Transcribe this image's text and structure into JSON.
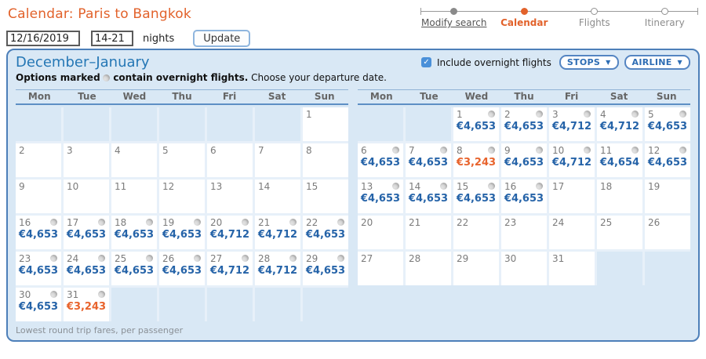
{
  "page": {
    "title": "Calendar: Paris to Bangkok"
  },
  "stepper": {
    "steps": [
      {
        "label": "Modify search",
        "state": "done"
      },
      {
        "label": "Calendar",
        "state": "active"
      },
      {
        "label": "Flights",
        "state": "todo"
      },
      {
        "label": "Itinerary",
        "state": "todo"
      }
    ]
  },
  "controls": {
    "date_value": "12/16/2019",
    "nights_value": "14-21",
    "nights_label": "nights",
    "update_label": "Update"
  },
  "panel": {
    "month_range": "December–January",
    "note_prefix": "Options marked",
    "note_bold_suffix": "contain overnight flights.",
    "note_rest": "Choose your departure date.",
    "include_overnight_label": "Include overnight flights",
    "include_overnight_checked": true,
    "stops_label": "STOPS",
    "airline_label": "AIRLINE",
    "footnote": "Lowest round trip fares, per passenger"
  },
  "icons": {
    "dropdown_arrow": "▼",
    "checkbox_check": "✓"
  },
  "weekdays": [
    "Mon",
    "Tue",
    "Wed",
    "Thu",
    "Fri",
    "Sat",
    "Sun"
  ],
  "calendars": [
    {
      "name": "december",
      "rows": [
        [
          null,
          null,
          null,
          null,
          null,
          null,
          {
            "day": "1"
          }
        ],
        [
          {
            "day": "2"
          },
          {
            "day": "3"
          },
          {
            "day": "4"
          },
          {
            "day": "5"
          },
          {
            "day": "6"
          },
          {
            "day": "7"
          },
          {
            "day": "8"
          }
        ],
        [
          {
            "day": "9"
          },
          {
            "day": "10"
          },
          {
            "day": "11"
          },
          {
            "day": "12"
          },
          {
            "day": "13"
          },
          {
            "day": "14"
          },
          {
            "day": "15"
          }
        ],
        [
          {
            "day": "16",
            "price": "€4,653",
            "overnight": true
          },
          {
            "day": "17",
            "price": "€4,653",
            "overnight": true
          },
          {
            "day": "18",
            "price": "€4,653",
            "overnight": true
          },
          {
            "day": "19",
            "price": "€4,653",
            "overnight": true
          },
          {
            "day": "20",
            "price": "€4,712",
            "overnight": true
          },
          {
            "day": "21",
            "price": "€4,712",
            "overnight": true
          },
          {
            "day": "22",
            "price": "€4,653",
            "overnight": true
          }
        ],
        [
          {
            "day": "23",
            "price": "€4,653",
            "overnight": true
          },
          {
            "day": "24",
            "price": "€4,653",
            "overnight": true
          },
          {
            "day": "25",
            "price": "€4,653",
            "overnight": true
          },
          {
            "day": "26",
            "price": "€4,653",
            "overnight": true
          },
          {
            "day": "27",
            "price": "€4,712",
            "overnight": true
          },
          {
            "day": "28",
            "price": "€4,712",
            "overnight": true
          },
          {
            "day": "29",
            "price": "€4,653",
            "overnight": true
          }
        ],
        [
          {
            "day": "30",
            "price": "€4,653",
            "overnight": true
          },
          {
            "day": "31",
            "price": "€3,243",
            "overnight": true,
            "special": true
          },
          null,
          null,
          null,
          null,
          null
        ]
      ]
    },
    {
      "name": "january",
      "rows": [
        [
          null,
          null,
          {
            "day": "1",
            "price": "€4,653",
            "overnight": true
          },
          {
            "day": "2",
            "price": "€4,653",
            "overnight": true
          },
          {
            "day": "3",
            "price": "€4,712",
            "overnight": true
          },
          {
            "day": "4",
            "price": "€4,712",
            "overnight": true
          },
          {
            "day": "5",
            "price": "€4,653",
            "overnight": true
          }
        ],
        [
          {
            "day": "6",
            "price": "€4,653",
            "overnight": true
          },
          {
            "day": "7",
            "price": "€4,653",
            "overnight": true
          },
          {
            "day": "8",
            "price": "€3,243",
            "overnight": true,
            "special": true
          },
          {
            "day": "9",
            "price": "€4,653",
            "overnight": true
          },
          {
            "day": "10",
            "price": "€4,712",
            "overnight": true
          },
          {
            "day": "11",
            "price": "€4,654",
            "overnight": true
          },
          {
            "day": "12",
            "price": "€4,653",
            "overnight": true
          }
        ],
        [
          {
            "day": "13",
            "price": "€4,653",
            "overnight": true
          },
          {
            "day": "14",
            "price": "€4,653",
            "overnight": true
          },
          {
            "day": "15",
            "price": "€4,653",
            "overnight": true
          },
          {
            "day": "16",
            "price": "€4,653",
            "overnight": true
          },
          {
            "day": "17"
          },
          {
            "day": "18"
          },
          {
            "day": "19"
          }
        ],
        [
          {
            "day": "20"
          },
          {
            "day": "21"
          },
          {
            "day": "22"
          },
          {
            "day": "23"
          },
          {
            "day": "24"
          },
          {
            "day": "25"
          },
          {
            "day": "26"
          }
        ],
        [
          {
            "day": "27"
          },
          {
            "day": "28"
          },
          {
            "day": "29"
          },
          {
            "day": "30"
          },
          {
            "day": "31"
          },
          null,
          null
        ]
      ]
    }
  ],
  "colors": {
    "accent_orange": "#e2622b",
    "heading_blue": "#2577b5",
    "price_blue": "#2563a8",
    "special_orange": "#e8632c",
    "panel_bg": "#d9e8f5",
    "panel_border": "#4d7fb9",
    "grid_gap": "#e7f0f9",
    "day_gray": "#7b7b7b",
    "weekday_gray": "#666666",
    "step_gray": "#8c8c8c",
    "checkbox_blue": "#4a90d9",
    "pill_border": "#5585c2",
    "pill_text": "#2e6db4"
  }
}
